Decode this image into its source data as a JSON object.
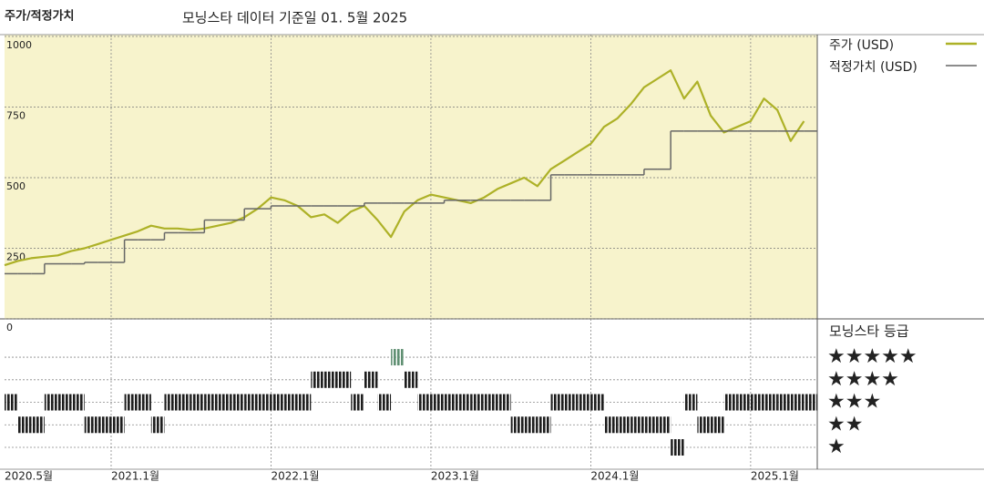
{
  "chart_data": [
    {
      "type": "line",
      "title": "주가/적정가치",
      "subtitle": "모닝스타 데이터 기준일 01. 5월 2025",
      "x": [
        "2020-05",
        "2020-06",
        "2020-07",
        "2020-08",
        "2020-09",
        "2020-10",
        "2020-11",
        "2020-12",
        "2021-01",
        "2021-02",
        "2021-03",
        "2021-04",
        "2021-05",
        "2021-06",
        "2021-07",
        "2021-08",
        "2021-09",
        "2021-10",
        "2021-11",
        "2021-12",
        "2022-01",
        "2022-02",
        "2022-03",
        "2022-04",
        "2022-05",
        "2022-06",
        "2022-07",
        "2022-08",
        "2022-09",
        "2022-10",
        "2022-11",
        "2022-12",
        "2023-01",
        "2023-02",
        "2023-03",
        "2023-04",
        "2023-05",
        "2023-06",
        "2023-07",
        "2023-08",
        "2023-09",
        "2023-10",
        "2023-11",
        "2023-12",
        "2024-01",
        "2024-02",
        "2024-03",
        "2024-04",
        "2024-05",
        "2024-06",
        "2024-07",
        "2024-08",
        "2024-09",
        "2024-10",
        "2024-11",
        "2024-12",
        "2025-01",
        "2025-02",
        "2025-03",
        "2025-04",
        "2025-05"
      ],
      "xlim": [
        "2020-05",
        "2025-06"
      ],
      "xticks": [
        {
          "value": "2020-05",
          "label": "2020.5월"
        },
        {
          "value": "2021-01",
          "label": "2021.1월"
        },
        {
          "value": "2022-01",
          "label": "2022.1월"
        },
        {
          "value": "2023-01",
          "label": "2023.1월"
        },
        {
          "value": "2024-01",
          "label": "2024.1월"
        },
        {
          "value": "2025-01",
          "label": "2025.1월"
        }
      ],
      "ylim": [
        0,
        1000
      ],
      "yticks": [
        0,
        250,
        500,
        750,
        1000
      ],
      "grid": true,
      "background": "#f7f3cc",
      "series": [
        {
          "name": "주가 (USD)",
          "color": "#adb127",
          "values": [
            190,
            205,
            215,
            220,
            225,
            240,
            250,
            265,
            280,
            295,
            310,
            330,
            320,
            320,
            315,
            320,
            330,
            340,
            360,
            390,
            430,
            420,
            400,
            360,
            370,
            340,
            380,
            400,
            350,
            290,
            380,
            420,
            440,
            430,
            420,
            410,
            430,
            460,
            480,
            500,
            470,
            530,
            560,
            590,
            620,
            680,
            710,
            760,
            820,
            850,
            880,
            780,
            840,
            720,
            660,
            680,
            700,
            780,
            740,
            630,
            700
          ]
        },
        {
          "name": "적정가치 (USD)",
          "color": "#666666",
          "step": true,
          "values": [
            160,
            160,
            160,
            195,
            195,
            195,
            200,
            200,
            200,
            280,
            280,
            280,
            305,
            305,
            305,
            350,
            350,
            350,
            390,
            390,
            400,
            400,
            400,
            400,
            400,
            400,
            400,
            410,
            410,
            410,
            410,
            410,
            410,
            420,
            420,
            420,
            420,
            420,
            420,
            420,
            420,
            510,
            510,
            510,
            510,
            510,
            510,
            510,
            530,
            530,
            665,
            665,
            665,
            665,
            665,
            665,
            665,
            665,
            665,
            665,
            665
          ]
        }
      ]
    },
    {
      "type": "rating",
      "title": "모닝스타 등급",
      "values": [
        3,
        2,
        2,
        3,
        3,
        3,
        2,
        2,
        2,
        3,
        3,
        2,
        3,
        3,
        3,
        3,
        3,
        3,
        3,
        3,
        3,
        3,
        3,
        4,
        4,
        4,
        3,
        4,
        3,
        5,
        4,
        3,
        3,
        3,
        3,
        3,
        3,
        3,
        2,
        2,
        2,
        3,
        3,
        3,
        3,
        2,
        2,
        2,
        2,
        2,
        1,
        3,
        2,
        2,
        3,
        3,
        3,
        3,
        3,
        3,
        3
      ],
      "color": "#1e1e1e",
      "top_color": "#5f8f72",
      "ylim": [
        0,
        6.7
      ],
      "yticks": [
        {
          "value": 5,
          "label": "★★★★★"
        },
        {
          "value": 4,
          "label": "★★★★"
        },
        {
          "value": 3,
          "label": "★★★"
        },
        {
          "value": 2,
          "label": "★★"
        },
        {
          "value": 1,
          "label": "★"
        }
      ]
    }
  ]
}
